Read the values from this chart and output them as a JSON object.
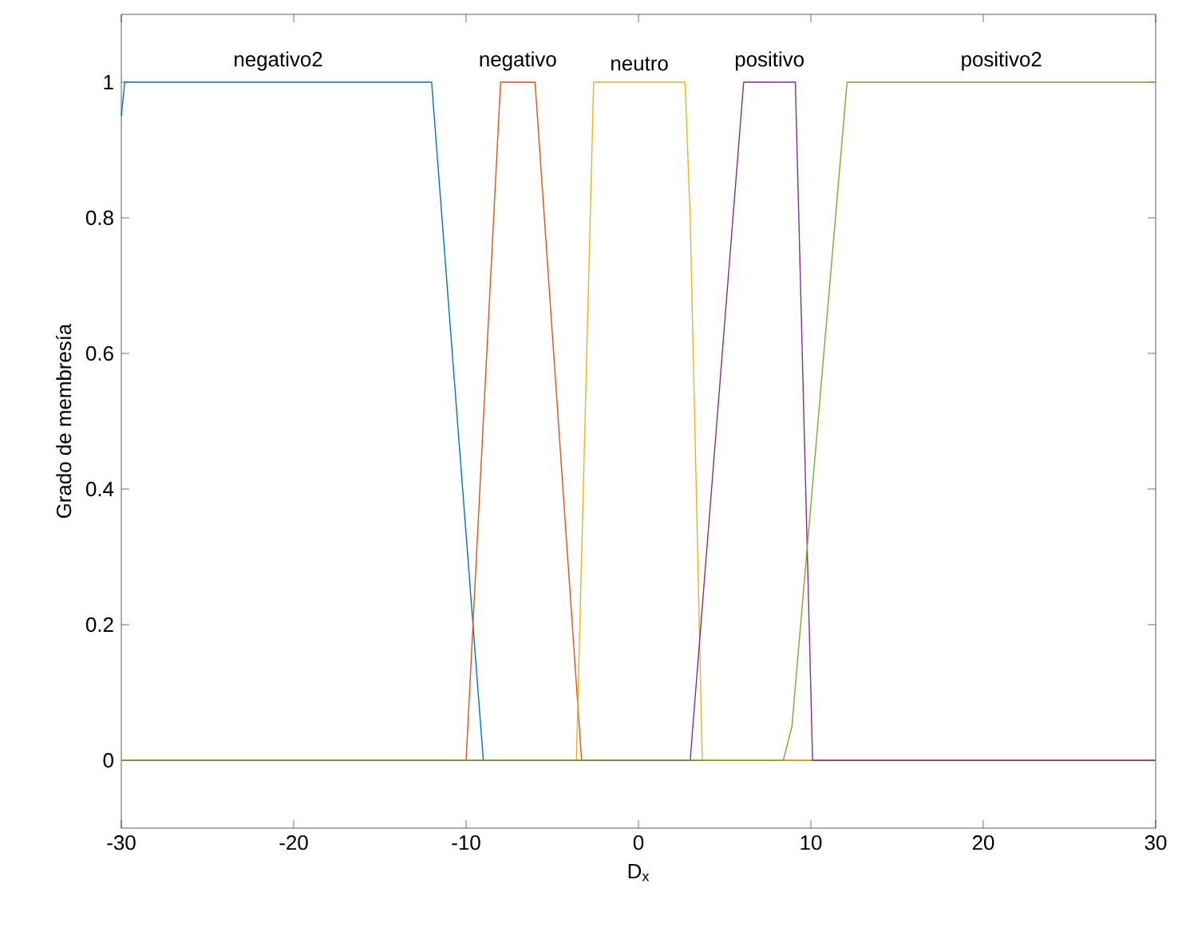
{
  "chart_data": {
    "type": "line",
    "xlabel": "D$_{x}$",
    "ylabel": "Grado de membresía",
    "xlim": [
      -30,
      30
    ],
    "ylim": [
      -0.1,
      1.1
    ],
    "xticks": [
      -30,
      -20,
      -10,
      0,
      10,
      20,
      30
    ],
    "yticks": [
      0,
      0.2,
      0.4,
      0.6,
      0.8,
      1
    ],
    "grid": false,
    "legend": false,
    "marker": "none",
    "line_style": "solid",
    "series": [
      {
        "name": "negativo2",
        "color": "#0072bd",
        "x": [
          -30,
          -29.8,
          -12,
          -9,
          30
        ],
        "values": [
          0.95,
          1,
          1,
          0,
          0
        ]
      },
      {
        "name": "negativo",
        "color": "#d95319",
        "x": [
          -30,
          -10,
          -8,
          -6,
          -3.3,
          30
        ],
        "values": [
          0,
          0,
          1,
          1,
          0,
          0
        ]
      },
      {
        "name": "neutro",
        "color": "#edb120",
        "x": [
          -30,
          -3.6,
          -2.6,
          2.7,
          3.0,
          3.7,
          30
        ],
        "values": [
          0,
          0,
          1,
          1,
          0.8,
          0,
          0
        ]
      },
      {
        "name": "positivo",
        "color": "#7e2f8e",
        "x": [
          -30,
          3.0,
          6.1,
          9.1,
          10.1,
          30
        ],
        "values": [
          0,
          0,
          1,
          1,
          0,
          0
        ]
      },
      {
        "name": "positivo2",
        "color": "#77ac30",
        "x": [
          -30,
          8.4,
          8.9,
          12.1,
          30
        ],
        "values": [
          0,
          0,
          0.05,
          1,
          1
        ]
      }
    ]
  }
}
